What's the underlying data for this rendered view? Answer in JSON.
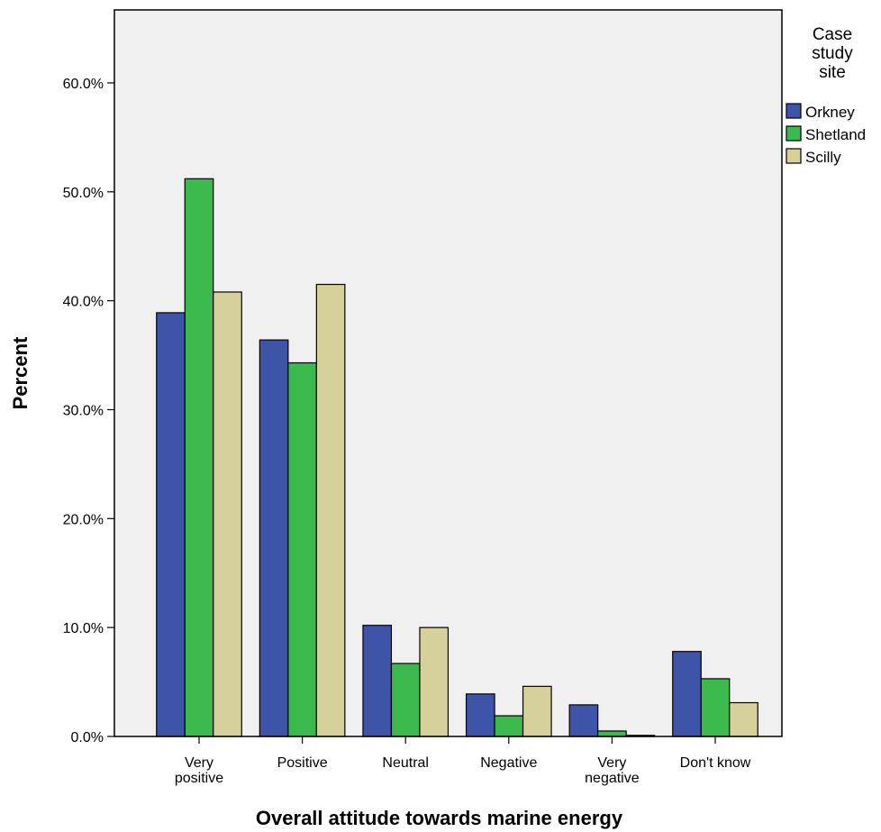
{
  "chart_data": {
    "type": "bar",
    "title": "",
    "xlabel": "Overall attitude towards marine energy",
    "ylabel": "Percent",
    "categories": [
      [
        "Very",
        "positive"
      ],
      [
        "Positive"
      ],
      [
        "Neutral"
      ],
      [
        "Negative"
      ],
      [
        "Very",
        "negative"
      ],
      [
        "Don't know"
      ]
    ],
    "ylim": [
      0,
      60
    ],
    "yticks": [
      0,
      10,
      20,
      30,
      40,
      50,
      60
    ],
    "ytick_labels": [
      "0.0%",
      "10.0%",
      "20.0%",
      "30.0%",
      "40.0%",
      "50.0%",
      "60.0%"
    ],
    "grid": false,
    "legend": {
      "title": [
        "Case",
        "study",
        "site"
      ],
      "position": "right"
    },
    "series": [
      {
        "name": "Orkney",
        "color": "#3e54a8",
        "values": [
          38.9,
          36.4,
          10.2,
          3.9,
          2.9,
          7.8
        ]
      },
      {
        "name": "Shetland",
        "color": "#3cb94c",
        "values": [
          51.2,
          34.3,
          6.7,
          1.9,
          0.5,
          5.3
        ]
      },
      {
        "name": "Scilly",
        "color": "#d6d09b",
        "values": [
          40.8,
          41.5,
          10.0,
          4.6,
          0.1,
          3.1
        ]
      }
    ],
    "plot_background": "#f0f0f0"
  }
}
